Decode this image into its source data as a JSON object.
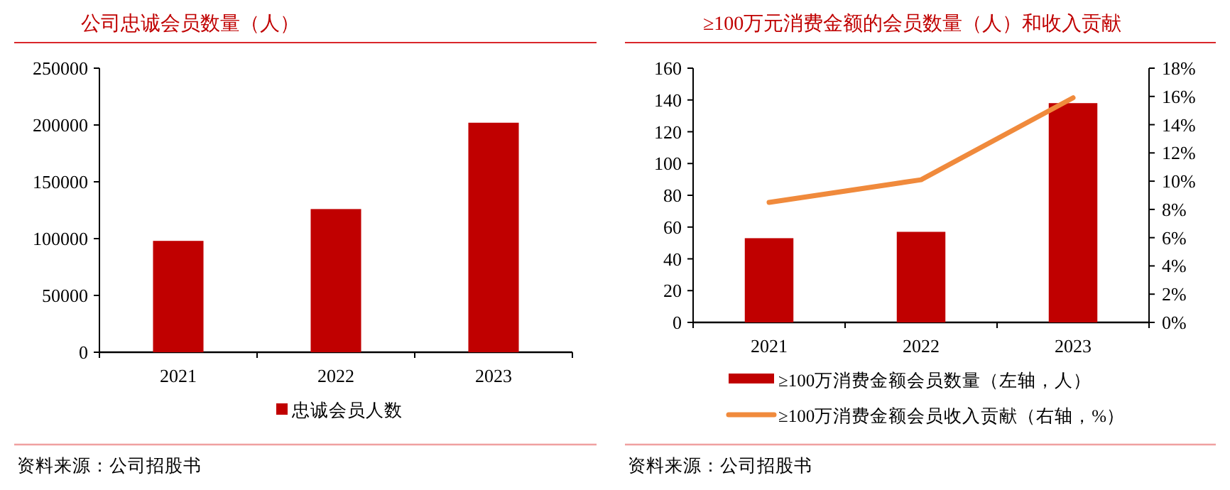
{
  "chart_data": [
    {
      "type": "bar",
      "title": "公司忠诚会员数量（人）",
      "categories": [
        "2021",
        "2022",
        "2023"
      ],
      "series": [
        {
          "name": "忠诚会员人数",
          "color": "#c00000",
          "values": [
            98000,
            126000,
            202000
          ]
        }
      ],
      "ylim": [
        0,
        250000
      ],
      "yticks": [
        0,
        50000,
        100000,
        150000,
        200000,
        250000
      ],
      "legend": "bottom",
      "annotations": [
        "资料来源：公司招股书"
      ]
    },
    {
      "type": "bar",
      "title": "≥100万元消费金额的会员数量（人）和收入贡献",
      "categories": [
        "2021",
        "2022",
        "2023"
      ],
      "series": [
        {
          "name": "≥100万消费金额会员数量（左轴，人）",
          "color": "#c00000",
          "values": [
            53,
            57,
            138
          ]
        },
        {
          "name": "≥100万消费金额会员收入贡献（右轴，%）",
          "type": "line",
          "axis": "y2",
          "color": "#f08a3c",
          "values": [
            8.5,
            10.1,
            15.9
          ]
        }
      ],
      "ylim": [
        0,
        160
      ],
      "yticks": [
        0,
        20,
        40,
        60,
        80,
        100,
        120,
        140,
        160
      ],
      "y2lim": [
        0,
        18
      ],
      "y2ticks": [
        {
          "value": 0,
          "label": "0%"
        },
        {
          "value": 2,
          "label": "2%"
        },
        {
          "value": 4,
          "label": "4%"
        },
        {
          "value": 6,
          "label": "6%"
        },
        {
          "value": 8,
          "label": "8%"
        },
        {
          "value": 10,
          "label": "10%"
        },
        {
          "value": 12,
          "label": "12%"
        },
        {
          "value": 14,
          "label": "14%"
        },
        {
          "value": 16,
          "label": "16%"
        },
        {
          "value": 18,
          "label": "18%"
        }
      ],
      "legend": "bottom",
      "annotations": [
        "资料来源：公司招股书"
      ]
    }
  ]
}
